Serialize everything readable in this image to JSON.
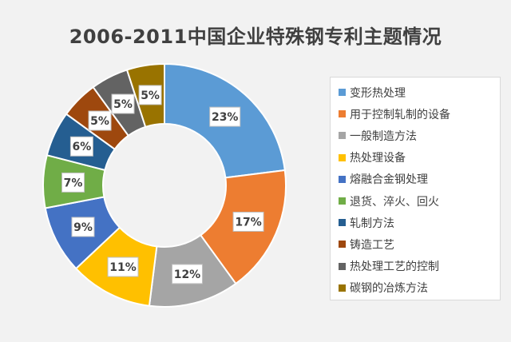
{
  "chart_data": {
    "type": "pie",
    "title": "2006-2011中国企业特殊钢专利主题情况",
    "categories": [
      "变形热处理",
      "用于控制轧制的设备",
      "一般制造方法",
      "热处理设备",
      "熔融合金钢处理",
      "退货、淬火、回火",
      "轧制方法",
      "铸造工艺",
      "热处理工艺的控制",
      "碳钢的冶炼方法"
    ],
    "values": [
      23,
      17,
      12,
      11,
      9,
      7,
      6,
      5,
      5,
      5
    ],
    "value_labels": [
      "23%",
      "17%",
      "12%",
      "11%",
      "9%",
      "7%",
      "6%",
      "5%",
      "5%",
      "5%"
    ],
    "colors": [
      "#5b9bd5",
      "#ed7d31",
      "#a5a5a5",
      "#ffc000",
      "#4472c4",
      "#70ad47",
      "#255e91",
      "#9e480e",
      "#636363",
      "#997300"
    ],
    "legend_position": "right",
    "style": "donut"
  }
}
